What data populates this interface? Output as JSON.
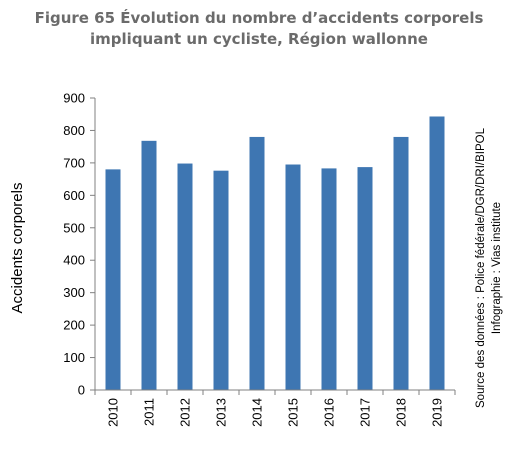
{
  "title": {
    "line1": "Figure 65 Évolution du nombre d’accidents corporels",
    "line2": "impliquant un cycliste, Région wallonne"
  },
  "source": {
    "line1": "Source des données : Police fédérale/DGR/DRI/BIPOL",
    "line2": "Infographie : Vias institute"
  },
  "colors": {
    "bar": "#3e76b2",
    "axis": "#808080",
    "title": "#6b6b6b"
  },
  "chart_data": {
    "type": "bar",
    "title": "Figure 65 Évolution du nombre d’accidents corporels impliquant un cycliste, Région wallonne",
    "xlabel": "",
    "ylabel": "Accidents corporels",
    "categories": [
      "2010",
      "2011",
      "2012",
      "2013",
      "2014",
      "2015",
      "2016",
      "2017",
      "2018",
      "2019"
    ],
    "values": [
      680,
      768,
      698,
      676,
      780,
      695,
      683,
      687,
      780,
      843
    ],
    "ylim": [
      0,
      900
    ],
    "yticks": [
      0,
      100,
      200,
      300,
      400,
      500,
      600,
      700,
      800,
      900
    ],
    "grid": false,
    "legend": "none"
  }
}
